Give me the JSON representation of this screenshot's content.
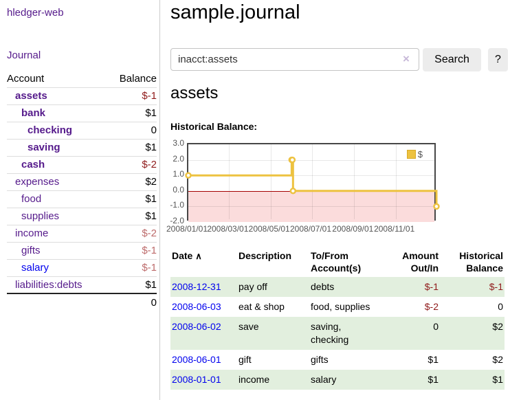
{
  "sidebar": {
    "app_title": "hledger-web",
    "journal_link": "Journal",
    "table": {
      "headers": {
        "account": "Account",
        "balance": "Balance"
      },
      "accounts": [
        {
          "name": "assets",
          "balance": "$-1"
        },
        {
          "name": "bank",
          "balance": "$1"
        },
        {
          "name": "checking",
          "balance": "0"
        },
        {
          "name": "saving",
          "balance": "$1"
        },
        {
          "name": "cash",
          "balance": "$-2"
        },
        {
          "name": "expenses",
          "balance": "$2"
        },
        {
          "name": "food",
          "balance": "$1"
        },
        {
          "name": "supplies",
          "balance": "$1"
        },
        {
          "name": "income",
          "balance": "$-2"
        },
        {
          "name": "gifts",
          "balance": "$-1"
        },
        {
          "name": "salary",
          "balance": "$-1"
        },
        {
          "name": "liabilities:debts",
          "balance": "$1"
        }
      ],
      "total": "0"
    }
  },
  "header": {
    "title": "sample.journal"
  },
  "search": {
    "value": "inacct:assets",
    "clear_label": "×",
    "button_label": "Search",
    "help_label": "?"
  },
  "account_page": {
    "heading": "assets",
    "chart_label": "Historical Balance:"
  },
  "chart_data": {
    "type": "line",
    "step": true,
    "title": "Historical Balance",
    "series": [
      {
        "name": "$",
        "color": "#EDC240",
        "points": [
          {
            "date": "2008-01-01",
            "day": 0,
            "value": 1
          },
          {
            "date": "2008-06-01",
            "day": 152,
            "value": 2
          },
          {
            "date": "2008-06-02",
            "day": 153,
            "value": 2
          },
          {
            "date": "2008-06-03",
            "day": 154,
            "value": 0
          },
          {
            "date": "2008-12-31",
            "day": 365,
            "value": -1
          }
        ]
      }
    ],
    "xlim_days": [
      0,
      366
    ],
    "ylim": [
      -2,
      3
    ],
    "x_ticks": [
      {
        "day": 0,
        "label": "2008/01/01"
      },
      {
        "day": 60,
        "label": "2008/03/01"
      },
      {
        "day": 121,
        "label": "2008/05/01"
      },
      {
        "day": 182,
        "label": "2008/07/01"
      },
      {
        "day": 244,
        "label": "2008/09/01"
      },
      {
        "day": 305,
        "label": "2008/11/01"
      }
    ],
    "y_ticks": [
      {
        "value": 3,
        "label": "3.0"
      },
      {
        "value": 2,
        "label": "2.0"
      },
      {
        "value": 1,
        "label": "1.0"
      },
      {
        "value": 0,
        "label": "0.0"
      },
      {
        "value": -1,
        "label": "-1.0"
      },
      {
        "value": -2,
        "label": "-2.0"
      }
    ],
    "legend": {
      "position": "top-right"
    },
    "negative_region_fill": "#fbdcdc",
    "zero_line_color": "#a40000",
    "grid": true
  },
  "register": {
    "headers": {
      "date": "Date",
      "sort_indicator": "∧",
      "description": "Description",
      "tofrom": "To/From Account(s)",
      "amount": "Amount Out/In",
      "balance": "Historical Balance"
    },
    "rows": [
      {
        "date": "2008-12-31",
        "description": "pay off",
        "tofrom": "debts",
        "amount": "$-1",
        "balance": "$-1"
      },
      {
        "date": "2008-06-03",
        "description": "eat & shop",
        "tofrom": "food, supplies",
        "amount": "$-2",
        "balance": "0"
      },
      {
        "date": "2008-06-02",
        "description": "save",
        "tofrom": "saving, checking",
        "amount": "0",
        "balance": "$2"
      },
      {
        "date": "2008-06-01",
        "description": "gift",
        "tofrom": "gifts",
        "amount": "$1",
        "balance": "$2"
      },
      {
        "date": "2008-01-01",
        "description": "income",
        "tofrom": "salary",
        "amount": "$1",
        "balance": "$1"
      }
    ]
  }
}
